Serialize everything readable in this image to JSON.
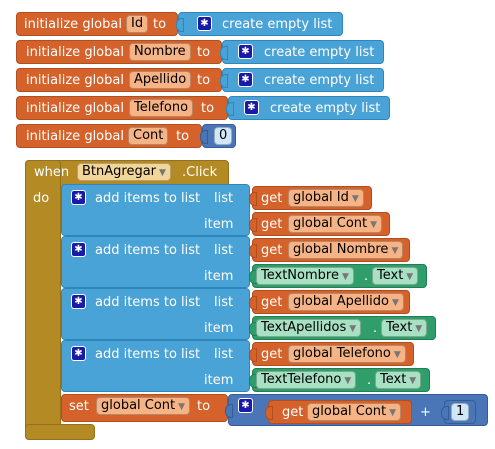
{
  "globals": [
    {
      "prefix": "initialize global",
      "name": "Id",
      "to": "to",
      "value": "create empty list"
    },
    {
      "prefix": "initialize global",
      "name": "Nombre",
      "to": "to",
      "value": "create empty list"
    },
    {
      "prefix": "initialize global",
      "name": "Apellido",
      "to": "to",
      "value": "create empty list"
    },
    {
      "prefix": "initialize global",
      "name": "Telefono",
      "to": "to",
      "value": "create empty list"
    },
    {
      "prefix": "initialize global",
      "name": "Cont",
      "to": "to",
      "value": "0"
    }
  ],
  "event": {
    "when": "when",
    "component": "BtnAgregar",
    "suffix": ".Click",
    "do": "do"
  },
  "add_items": [
    {
      "label": "add items to list",
      "list": "list",
      "item": "item",
      "list_get": "get",
      "list_var": "global Id",
      "item_get": "get",
      "item_var": "global Cont"
    },
    {
      "label": "add items to list",
      "list": "list",
      "item": "item",
      "list_get": "get",
      "list_var": "global Nombre",
      "item_component": "TextNombre",
      "dot": ".",
      "item_prop": "Text"
    },
    {
      "label": "add items to list",
      "list": "list",
      "item": "item",
      "list_get": "get",
      "list_var": "global Apellido",
      "item_component": "TextApellidos",
      "dot": ".",
      "item_prop": "Text"
    },
    {
      "label": "add items to list",
      "list": "list",
      "item": "item",
      "list_get": "get",
      "list_var": "global Telefono",
      "item_component": "TextTelefono",
      "dot": ".",
      "item_prop": "Text"
    }
  ],
  "set_block": {
    "set": "set",
    "var": "global Cont",
    "to": "to",
    "get": "get",
    "get_var": "global Cont",
    "op": "+",
    "num": "1"
  },
  "icons": {
    "gear": "gear-icon",
    "dropdown": "dropdown-arrow-icon"
  },
  "colors": {
    "variables": "#d4622a",
    "lists": "#4aa3d6",
    "event": "#b38a24",
    "component": "#2f9e6a",
    "math": "#4a76b8"
  }
}
